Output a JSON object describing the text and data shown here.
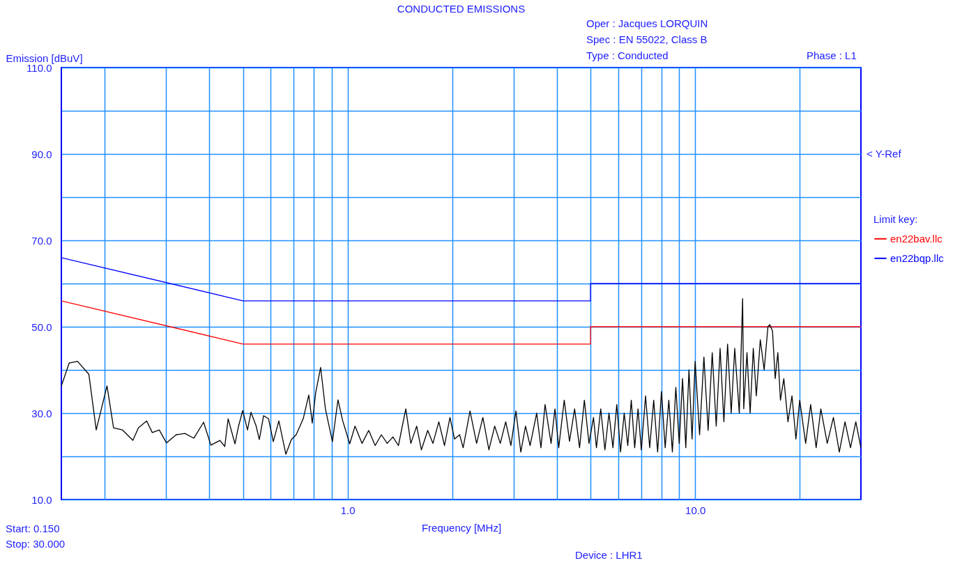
{
  "chart_data": {
    "type": "line",
    "title": "CONDUCTED EMISSIONS",
    "xlabel": "Frequency [MHz]",
    "ylabel": "Emission [dBuV]",
    "legend_title": "Limit key:",
    "annotations": [
      "Oper : Jacques LORQUIN",
      "Spec : EN 55022, Class B",
      "Type : Conducted",
      "Phase : L1",
      "Start: 0.150",
      "Stop: 30.000",
      "Device : LHR1",
      "< Y-Ref"
    ],
    "log": "x",
    "grid": true,
    "legend": "right",
    "marker": "none",
    "line_style": "solid",
    "xlim": [
      0.15,
      30
    ],
    "ylim": [
      10,
      110
    ],
    "xticks": [
      {
        "value": 0.2,
        "label": null
      },
      {
        "value": 0.3,
        "label": null
      },
      {
        "value": 0.4,
        "label": null
      },
      {
        "value": 0.5,
        "label": null
      },
      {
        "value": 0.6,
        "label": null
      },
      {
        "value": 0.7,
        "label": null
      },
      {
        "value": 0.8,
        "label": null
      },
      {
        "value": 0.9,
        "label": null
      },
      {
        "value": 1,
        "label": "1.0"
      },
      {
        "value": 2,
        "label": null
      },
      {
        "value": 3,
        "label": null
      },
      {
        "value": 4,
        "label": null
      },
      {
        "value": 5,
        "label": null
      },
      {
        "value": 6,
        "label": null
      },
      {
        "value": 7,
        "label": null
      },
      {
        "value": 8,
        "label": null
      },
      {
        "value": 9,
        "label": null
      },
      {
        "value": 10,
        "label": "10.0"
      },
      {
        "value": 20,
        "label": null
      }
    ],
    "yticks": [
      {
        "value": 10,
        "label": "10.0"
      },
      {
        "value": 20,
        "label": null
      },
      {
        "value": 30,
        "label": "30.0"
      },
      {
        "value": 40,
        "label": null
      },
      {
        "value": 50,
        "label": "50.0"
      },
      {
        "value": 60,
        "label": null
      },
      {
        "value": 70,
        "label": "70.0"
      },
      {
        "value": 80,
        "label": null
      },
      {
        "value": 90,
        "label": "90.0"
      },
      {
        "value": 100,
        "label": null
      },
      {
        "value": 110,
        "label": "110.0"
      }
    ],
    "series": [
      {
        "name": "en22bav.llc",
        "color": "#ff0000",
        "x": [
          0.15,
          0.5,
          5,
          5,
          30
        ],
        "values": [
          56,
          46,
          46,
          50,
          50
        ]
      },
      {
        "name": "en22bqp.llc",
        "color": "#0000ff",
        "x": [
          0.15,
          0.5,
          5,
          5,
          30
        ],
        "values": [
          66,
          56,
          56,
          60,
          60
        ]
      },
      {
        "color": "#000000",
        "x": [
          0.15,
          0.158,
          0.167,
          0.18,
          0.189,
          0.203,
          0.212,
          0.225,
          0.241,
          0.25,
          0.264,
          0.274,
          0.287,
          0.301,
          0.321,
          0.34,
          0.361,
          0.385,
          0.404,
          0.429,
          0.443,
          0.453,
          0.474,
          0.485,
          0.499,
          0.515,
          0.527,
          0.545,
          0.557,
          0.573,
          0.592,
          0.611,
          0.634,
          0.664,
          0.689,
          0.711,
          0.745,
          0.773,
          0.791,
          0.809,
          0.836,
          0.863,
          0.904,
          0.938,
          0.968,
          1.014,
          1.05,
          1.1,
          1.15,
          1.2,
          1.25,
          1.3,
          1.35,
          1.4,
          1.47,
          1.52,
          1.58,
          1.63,
          1.7,
          1.76,
          1.83,
          1.9,
          1.97,
          2.03,
          2.1,
          2.15,
          2.25,
          2.35,
          2.45,
          2.55,
          2.65,
          2.75,
          2.85,
          2.95,
          3.05,
          3.15,
          3.25,
          3.35,
          3.5,
          3.6,
          3.7,
          3.85,
          3.95,
          4.05,
          4.2,
          4.35,
          4.5,
          4.65,
          4.8,
          4.95,
          5.1,
          5.2,
          5.35,
          5.5,
          5.65,
          5.8,
          5.95,
          6.1,
          6.25,
          6.4,
          6.55,
          6.7,
          6.85,
          7.0,
          7.2,
          7.4,
          7.6,
          7.8,
          8.0,
          8.2,
          8.4,
          8.6,
          8.8,
          9.0,
          9.2,
          9.4,
          9.6,
          9.8,
          10.0,
          10.3,
          10.6,
          10.9,
          11.2,
          11.5,
          11.8,
          12.1,
          12.4,
          12.7,
          13.0,
          13.4,
          13.7,
          13.8,
          14.1,
          14.4,
          14.7,
          15.0,
          15.4,
          15.8,
          16.2,
          16.4,
          16.7,
          17.0,
          17.3,
          17.6,
          18.0,
          18.5,
          19.0,
          19.5,
          20,
          20.8,
          21.5,
          22.3,
          23.0,
          24.0,
          25.0,
          26.0,
          27,
          28,
          29,
          30
        ],
        "values": [
          36.3,
          41.6,
          42,
          39,
          26.1,
          36.3,
          26.6,
          26.1,
          23.7,
          26.6,
          28.2,
          25.5,
          26.1,
          23.1,
          25,
          25.3,
          24.2,
          27.9,
          22.6,
          23.7,
          22.3,
          28.7,
          22.9,
          26.9,
          30.6,
          26.1,
          30.2,
          27.1,
          23.9,
          29.4,
          28.7,
          23.4,
          28.2,
          20.5,
          23.9,
          25,
          28.7,
          34.2,
          27.7,
          34.7,
          40.6,
          31,
          23.4,
          33.1,
          28.2,
          22.9,
          27,
          23,
          26,
          22.5,
          25,
          23,
          24.5,
          22.5,
          31,
          23,
          27,
          21.5,
          26,
          23,
          28,
          22.5,
          29,
          24,
          25,
          22,
          30.5,
          23,
          29,
          21.5,
          27,
          23,
          28,
          22.5,
          30.5,
          21,
          27,
          22.5,
          30,
          22,
          32,
          23,
          31,
          22,
          33,
          23.5,
          31,
          22,
          33,
          23,
          29,
          22,
          31,
          21.5,
          30,
          22,
          32,
          21,
          30,
          22.5,
          33,
          22,
          31,
          21.5,
          34,
          22,
          33,
          21,
          35,
          22,
          33,
          21,
          36,
          23,
          38,
          22,
          40,
          24,
          42,
          25,
          43,
          26,
          44,
          27,
          45,
          28,
          46,
          30,
          45,
          30,
          56.5,
          31,
          44,
          30,
          45,
          34,
          47,
          40,
          50,
          50.5,
          49,
          38,
          44,
          33,
          38,
          28,
          34,
          24,
          33,
          23,
          32,
          22,
          31,
          23,
          29,
          21,
          28,
          22,
          28,
          22
        ]
      }
    ]
  }
}
